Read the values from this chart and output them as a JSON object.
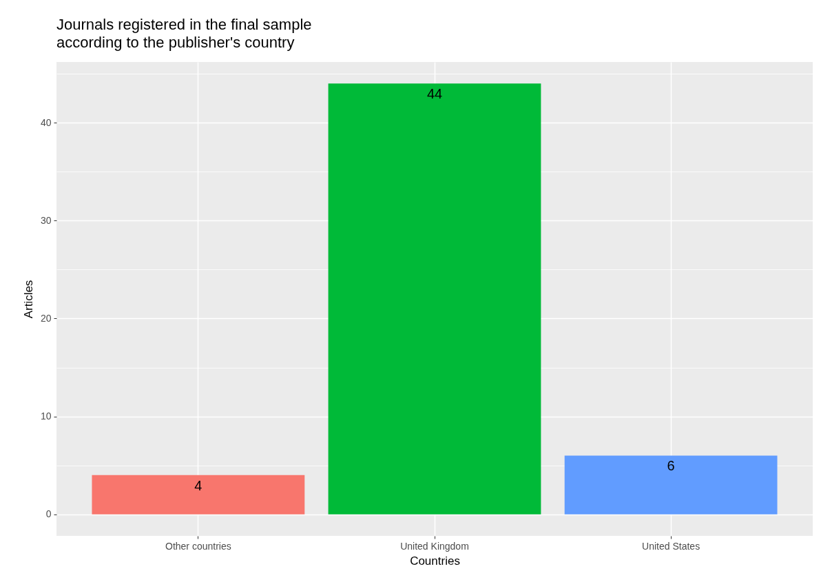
{
  "chart_data": {
    "type": "bar",
    "title": "Journals registered in the final sample\naccording to the publisher's country",
    "xlabel": "Countries",
    "ylabel": "Articles",
    "categories": [
      "Other countries",
      "United Kingdom",
      "United States"
    ],
    "values": [
      4,
      44,
      6
    ],
    "colors": [
      "#f8766d",
      "#00ba38",
      "#619cff"
    ],
    "ylim": [
      -2.2,
      46.2
    ],
    "yticks": [
      0,
      {
        "value": 5,
        "label": null
      },
      10,
      {
        "value": 15,
        "label": null
      },
      20,
      {
        "value": 25,
        "label": null
      },
      30,
      {
        "value": 35,
        "label": null
      },
      40,
      {
        "value": 45,
        "label": null
      }
    ],
    "grid": true,
    "data_labels": true
  }
}
